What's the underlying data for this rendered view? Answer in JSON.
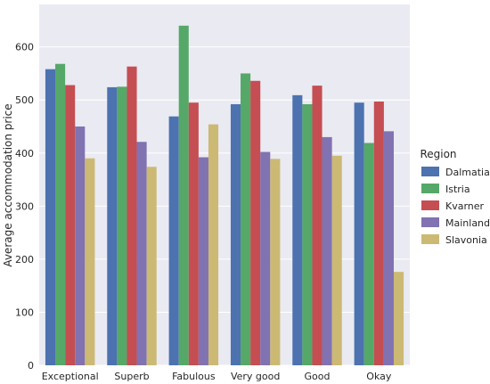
{
  "chart_data": {
    "type": "bar",
    "title": "",
    "xlabel": "",
    "ylabel": "Average accommodation price",
    "ylim": [
      0,
      680
    ],
    "yticks": [
      0,
      100,
      200,
      300,
      400,
      500,
      600
    ],
    "grid": true,
    "legend_title": "Region",
    "legend_position": "right",
    "categories": [
      "Exceptional",
      "Superb",
      "Fabulous",
      "Very good",
      "Good",
      "Okay"
    ],
    "series": [
      {
        "name": "Dalmatia",
        "color": "#4c72b0",
        "values": [
          558,
          524,
          469,
          492,
          509,
          495
        ]
      },
      {
        "name": "Istria",
        "color": "#55a868",
        "values": [
          568,
          525,
          640,
          550,
          492,
          419
        ]
      },
      {
        "name": "Kvarner",
        "color": "#c44e52",
        "values": [
          528,
          563,
          495,
          536,
          527,
          497
        ]
      },
      {
        "name": "Mainland",
        "color": "#8172b2",
        "values": [
          450,
          421,
          392,
          402,
          430,
          441
        ]
      },
      {
        "name": "Slavonia",
        "color": "#ccb974",
        "values": [
          390,
          374,
          454,
          389,
          395,
          176
        ]
      }
    ]
  }
}
